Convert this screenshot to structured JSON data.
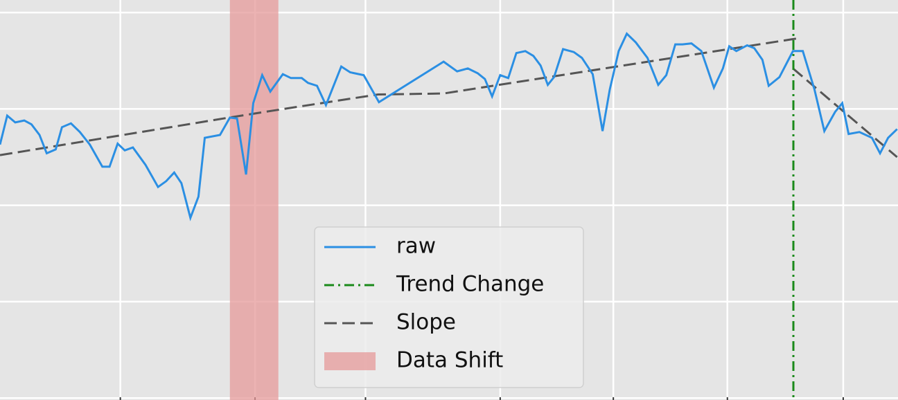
{
  "chart_data": {
    "type": "line",
    "xlim": [
      0,
      100
    ],
    "ylim": [
      -0.02,
      4.13
    ],
    "xticks": [
      13.4,
      28.4,
      40.7,
      55.7,
      68.3,
      81.0,
      93.9
    ],
    "yticks": [
      0,
      1,
      2,
      3,
      4
    ],
    "grid": true,
    "background": "#e5e5e5",
    "series": [
      {
        "name": "raw",
        "color": "#2b8fe3",
        "style": "solid",
        "x": [
          0.0,
          0.8,
          1.7,
          2.7,
          3.5,
          4.4,
          5.2,
          6.2,
          6.9,
          7.9,
          8.9,
          10.0,
          11.4,
          12.2,
          13.1,
          13.9,
          14.8,
          16.2,
          17.6,
          18.5,
          19.4,
          20.2,
          21.2,
          22.1,
          22.8,
          24.5,
          25.6,
          26.4,
          27.4,
          28.2,
          29.2,
          30.1,
          31.5,
          32.4,
          33.6,
          34.3,
          35.3,
          36.3,
          38.0,
          39.0,
          40.5,
          42.2,
          49.4,
          50.9,
          52.1,
          53.2,
          54.0,
          54.8,
          55.7,
          56.6,
          57.5,
          58.5,
          59.4,
          60.2,
          61.0,
          61.7,
          62.7,
          63.9,
          64.8,
          66.0,
          67.1,
          67.9,
          68.9,
          69.8,
          70.8,
          72.1,
          73.3,
          74.2,
          75.2,
          76.0,
          77.0,
          78.1,
          79.5,
          80.5,
          81.2,
          82.0,
          83.2,
          84.0,
          84.9,
          85.6,
          86.8,
          88.3,
          89.4,
          90.7,
          91.8,
          93.0,
          93.8,
          94.5,
          95.7,
          97.1,
          98.0,
          98.9,
          99.9
        ],
        "values": [
          2.63,
          2.93,
          2.86,
          2.88,
          2.84,
          2.73,
          2.54,
          2.58,
          2.81,
          2.85,
          2.76,
          2.63,
          2.4,
          2.4,
          2.64,
          2.57,
          2.6,
          2.42,
          2.19,
          2.25,
          2.34,
          2.23,
          1.87,
          2.09,
          2.7,
          2.73,
          2.91,
          2.9,
          2.32,
          3.06,
          3.35,
          3.18,
          3.36,
          3.32,
          3.32,
          3.27,
          3.24,
          3.04,
          3.44,
          3.38,
          3.35,
          3.07,
          3.49,
          3.39,
          3.42,
          3.37,
          3.31,
          3.13,
          3.35,
          3.32,
          3.58,
          3.6,
          3.55,
          3.45,
          3.25,
          3.33,
          3.62,
          3.59,
          3.53,
          3.36,
          2.77,
          3.2,
          3.6,
          3.78,
          3.69,
          3.53,
          3.25,
          3.35,
          3.67,
          3.67,
          3.68,
          3.6,
          3.22,
          3.42,
          3.65,
          3.6,
          3.66,
          3.63,
          3.51,
          3.24,
          3.33,
          3.6,
          3.6,
          3.2,
          2.77,
          2.97,
          3.06,
          2.74,
          2.76,
          2.7,
          2.54,
          2.7,
          2.79
        ]
      },
      {
        "name": "Slope",
        "color": "#555555",
        "style": "dashed",
        "x": [
          0,
          25.5,
          30.9,
          42.1,
          49.4,
          88.7,
          null,
          88.3,
          99.9
        ],
        "values": [
          2.52,
          2.91,
          2.99,
          3.15,
          3.16,
          3.73,
          null,
          3.42,
          2.5
        ]
      }
    ],
    "vlines": [
      {
        "name": "Trend Change",
        "x": 88.35,
        "color": "#1a8a1a"
      }
    ],
    "spans": [
      {
        "name": "Data Shift",
        "x": [
          25.6,
          31.0
        ],
        "color": "#e59a9a"
      }
    ]
  }
}
